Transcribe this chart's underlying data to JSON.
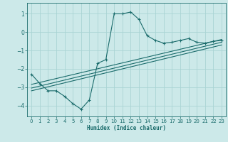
{
  "xlabel": "Humidex (Indice chaleur)",
  "bg_color": "#cce9e9",
  "grid_color": "#aad4d4",
  "line_color": "#1a6b6b",
  "xlim": [
    -0.5,
    23.5
  ],
  "ylim": [
    -4.6,
    1.6
  ],
  "yticks": [
    1,
    0,
    -1,
    -2,
    -3,
    -4
  ],
  "xticks": [
    0,
    1,
    2,
    3,
    4,
    5,
    6,
    7,
    8,
    9,
    10,
    11,
    12,
    13,
    14,
    15,
    16,
    17,
    18,
    19,
    20,
    21,
    22,
    23
  ],
  "curve1_x": [
    0,
    1,
    2,
    3,
    4,
    5,
    6,
    7,
    8,
    9,
    10,
    11,
    12,
    13,
    14,
    15,
    16,
    17,
    18,
    19,
    20,
    21,
    22,
    23
  ],
  "curve1_y": [
    -2.3,
    -2.8,
    -3.2,
    -3.2,
    -3.5,
    -3.9,
    -4.2,
    -3.7,
    -1.7,
    -1.5,
    1.0,
    1.0,
    1.1,
    0.7,
    -0.2,
    -0.45,
    -0.6,
    -0.55,
    -0.45,
    -0.35,
    -0.55,
    -0.6,
    -0.5,
    -0.45
  ],
  "line2_x": [
    0,
    23
  ],
  "line2_y": [
    -2.85,
    -0.4
  ],
  "line3_x": [
    0,
    23
  ],
  "line3_y": [
    -3.05,
    -0.55
  ],
  "line4_x": [
    0,
    23
  ],
  "line4_y": [
    -3.2,
    -0.7
  ]
}
